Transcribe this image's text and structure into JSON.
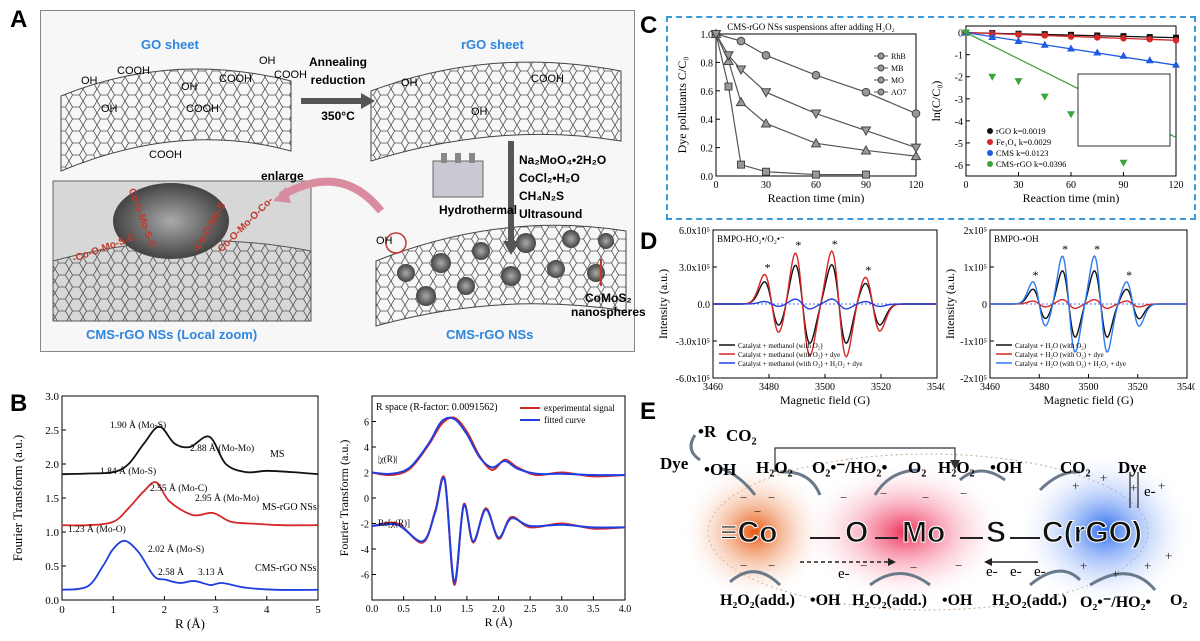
{
  "panels": {
    "A": {
      "label": "A",
      "go_sheet": "GO sheet",
      "rgo_sheet": "rGO sheet",
      "arrow1_text": [
        "Annealing",
        "reduction",
        "350°C"
      ],
      "arrow2_text": [
        "Na₂MoO₄•2H₂O",
        "CoCl₂•H₂O",
        "CH₄N₂S",
        "Ultrasound"
      ],
      "hydrothermal": "Hydrothermal",
      "enlarge": "enlarge",
      "comos2": "CoMoS₂",
      "nanospheres": "nanospheres",
      "local_zoom": "CMS-rGO NSs (Local zoom)",
      "cms_rgo": "CMS-rGO NSs",
      "chem_labels": [
        "OH",
        "COOH",
        "OH",
        "COOH",
        "OH",
        "COOH",
        "OH",
        "COOH",
        "COOH",
        "OH",
        "OH",
        "COOH",
        "OH"
      ],
      "local_bonds": [
        "-Co-O-Mo-S-C",
        "Co-O-Mo-S-C",
        "-Co-O-Mo-S",
        "Co-O-Mo-O-Co-"
      ]
    },
    "B": {
      "label": "B",
      "left": {
        "ylabel": "Fourier Transform (a.u.)",
        "xlabel": "R (Å)",
        "xticks": [
          "0",
          "1",
          "2",
          "3",
          "4",
          "5"
        ],
        "yticks": [
          "0.0",
          "0.5",
          "1.0",
          "1.5",
          "2.0",
          "2.5",
          "3.0"
        ],
        "series_labels": [
          "MS",
          "MS-rGO NSs",
          "CMS-rGO NSs"
        ],
        "annotations": [
          "1.90 Å (Mo-S)",
          "2.88 Å (Mo-Mo)",
          "1.84 Å (Mo-S)",
          "2.55 Å (Mo-C)",
          "2.95 Å (Mo-Mo)",
          "1.23 Å (Mo-O)",
          "2.02 Å (Mo-S)",
          "2.58 Å",
          "3.13 Å"
        ]
      },
      "right": {
        "title": "R space (R-factor: 0.0091562)",
        "ylabel": "Fourier Transform (a.u.)",
        "xlabel": "R (Å)",
        "xticks": [
          "0.0",
          "0.5",
          "1.0",
          "1.5",
          "2.0",
          "2.5",
          "3.0",
          "3.5",
          "4.0"
        ],
        "yticks": [
          "-6",
          "-4",
          "-2",
          "0",
          "2",
          "4",
          "6"
        ],
        "legend": [
          "experimental signal",
          "fitted curve"
        ],
        "curve_labels": [
          "|χ(R)|",
          "Re[χ(R)]"
        ]
      }
    },
    "C": {
      "label": "C",
      "left": {
        "title": "CMS-rGO NSs suspensions after adding H₂O₂",
        "ylabel": "Dye pollutants C/C₀",
        "xlabel": "Reaction time (min)",
        "xticks": [
          "0",
          "30",
          "60",
          "90",
          "120"
        ],
        "yticks": [
          "0.0",
          "0.2",
          "0.4",
          "0.6",
          "0.8",
          "1.0"
        ],
        "legend": [
          "RhB",
          "MB",
          "MO",
          "AO7"
        ]
      },
      "right": {
        "ylabel": "ln(C/C₀)",
        "xlabel": "Reaction time (min)",
        "xticks": [
          "0",
          "30",
          "60",
          "90",
          "120"
        ],
        "yticks": [
          "0",
          "-1",
          "-2",
          "-3",
          "-4",
          "-5",
          "-6"
        ],
        "legend": [
          "rGO  k=0.0019",
          "Fe₃O₄  k=0.0029",
          "CMS  k=0.0123",
          "CMS-rGO  k=0.0396"
        ]
      }
    },
    "D": {
      "label": "D",
      "left": {
        "title": "BMPO-HO₂•/O₂•⁻",
        "ylabel": "Intensity (a.u.)",
        "xlabel": "Magnetic field (G)",
        "xticks": [
          "3460",
          "3480",
          "3500",
          "3520",
          "3540"
        ],
        "yticks": [
          "6.0x10⁵",
          "3.0x10⁵",
          "0.0",
          "-3.0x10⁵",
          "-6.0x10⁵"
        ],
        "legend": [
          "Catalyst + methanol (with O₂)",
          "Catalyst + methanol (with O₂) + dye",
          "Catalyst + methanol (with O₂) + H₂O₂ + dye"
        ]
      },
      "right": {
        "title": "BMPO-•OH",
        "ylabel": "Intensity (a.u.)",
        "xlabel": "Magnetic field (G)",
        "xticks": [
          "3460",
          "3480",
          "3500",
          "3520",
          "3540"
        ],
        "yticks": [
          "2x10⁵",
          "1x10⁵",
          "0",
          "-1x10⁵",
          "-2x10⁵"
        ],
        "legend": [
          "Catalyst + H₂O (with O₂)",
          "Catalyst + H₂O (with O₂) + dye",
          "Catalyst + H₂O (with O₂) + H₂O₂ + dye"
        ]
      }
    },
    "E": {
      "label": "E",
      "top_labels": [
        "•R",
        "CO₂",
        "Dye",
        "•OH",
        "H₂O₂",
        "O₂•⁻/HO₂•",
        "O₂",
        "H₂O₂",
        "•OH",
        "CO₂",
        "Dye",
        "e-"
      ],
      "blobs": [
        "≡Co",
        "O",
        "Mo",
        "S",
        "C(rGO)"
      ],
      "bottom_labels": [
        "H₂O₂(add.)",
        "•OH",
        "H₂O₂(add.)",
        "•OH",
        "H₂O₂(add.)",
        "O₂•⁻/HO₂•",
        "O₂"
      ],
      "electrons": [
        "e-",
        "e-",
        "e-",
        "e-"
      ]
    }
  },
  "chart_data": [
    {
      "panel": "B-left",
      "type": "line",
      "xlabel": "R (Å)",
      "ylabel": "Fourier Transform (a.u.)",
      "xlim": [
        0,
        5
      ],
      "ylim": [
        0,
        3.0
      ],
      "series": [
        {
          "name": "MS",
          "x": [
            0,
            0.5,
            1.0,
            1.3,
            1.6,
            1.9,
            2.2,
            2.5,
            2.88,
            3.2,
            3.6,
            4.0,
            4.5,
            5.0
          ],
          "y": [
            1.85,
            1.86,
            1.88,
            2.0,
            2.3,
            2.55,
            2.3,
            2.25,
            2.4,
            2.0,
            1.88,
            1.9,
            1.88,
            1.85
          ]
        },
        {
          "name": "MS-rGO NSs",
          "x": [
            0,
            0.5,
            1.0,
            1.3,
            1.6,
            1.84,
            2.1,
            2.55,
            2.95,
            3.3,
            3.8,
            4.3,
            5.0
          ],
          "y": [
            1.1,
            1.1,
            1.15,
            1.35,
            1.6,
            1.73,
            1.45,
            1.25,
            1.28,
            1.15,
            1.12,
            1.1,
            1.1
          ]
        },
        {
          "name": "CMS-rGO NSs",
          "x": [
            0,
            0.5,
            0.8,
            1.0,
            1.23,
            1.5,
            1.8,
            2.02,
            2.3,
            2.58,
            2.9,
            3.13,
            3.6,
            4.2,
            5.0
          ],
          "y": [
            0.15,
            0.2,
            0.5,
            0.75,
            0.87,
            0.7,
            0.35,
            0.3,
            0.25,
            0.28,
            0.22,
            0.25,
            0.18,
            0.15,
            0.15
          ]
        }
      ]
    },
    {
      "panel": "B-right",
      "type": "line",
      "title": "R space (R-factor: 0.0091562)",
      "xlabel": "R (Å)",
      "ylabel": "Fourier Transform (a.u.)",
      "xlim": [
        0,
        4.0
      ],
      "ylim": [
        -8,
        8
      ],
      "series": [
        {
          "name": "experimental signal",
          "x": [
            0,
            0.3,
            0.6,
            0.9,
            1.1,
            1.3,
            1.5,
            1.7,
            1.9,
            2.1,
            2.3,
            2.6,
            3.0,
            3.5,
            4.0
          ],
          "y": [
            2,
            1.8,
            2.3,
            4.2,
            5.8,
            6.3,
            5.2,
            3.3,
            2.2,
            3.0,
            2.4,
            1.8,
            2.0,
            1.7,
            1.8
          ]
        },
        {
          "name": "fitted curve",
          "x": [
            0,
            0.3,
            0.6,
            0.9,
            1.1,
            1.3,
            1.5,
            1.7,
            1.9,
            2.1,
            2.3,
            2.6,
            3.0,
            3.5,
            4.0
          ],
          "y": [
            2,
            1.9,
            2.4,
            4.3,
            6.0,
            6.2,
            5.0,
            3.2,
            2.4,
            2.9,
            2.3,
            1.9,
            1.9,
            1.8,
            1.8
          ]
        },
        {
          "name": "Re[χ(R)] experimental",
          "x": [
            0,
            0.4,
            0.8,
            1.0,
            1.15,
            1.3,
            1.45,
            1.6,
            1.8,
            2.0,
            2.2,
            2.5,
            3.0,
            3.5,
            4.0
          ],
          "y": [
            -2.2,
            -2.0,
            -3.5,
            -1.0,
            1.5,
            -6.8,
            -0.5,
            -3.5,
            -0.8,
            -3.2,
            -1.5,
            -2.3,
            -2.0,
            -2.4,
            -2.3
          ]
        },
        {
          "name": "Re[χ(R)] fitted",
          "x": [
            0,
            0.4,
            0.8,
            1.0,
            1.15,
            1.3,
            1.45,
            1.6,
            1.8,
            2.0,
            2.2,
            2.5,
            3.0,
            3.5,
            4.0
          ],
          "y": [
            -2.2,
            -2.1,
            -3.4,
            -1.1,
            1.4,
            -6.6,
            -0.6,
            -3.4,
            -0.9,
            -3.1,
            -1.6,
            -2.2,
            -2.1,
            -2.3,
            -2.3
          ]
        }
      ]
    },
    {
      "panel": "C-left",
      "type": "line",
      "xlabel": "Reaction time (min)",
      "ylabel": "Dye pollutants C/C₀",
      "xlim": [
        0,
        120
      ],
      "ylim": [
        0,
        1.0
      ],
      "x": [
        0,
        7.5,
        15,
        30,
        60,
        90,
        120
      ],
      "series": [
        {
          "name": "RhB",
          "values": [
            1.0,
            0.63,
            0.08,
            0.03,
            0.01,
            0.01,
            null
          ]
        },
        {
          "name": "MB",
          "values": [
            1.0,
            null,
            0.95,
            0.85,
            0.71,
            0.59,
            0.44
          ]
        },
        {
          "name": "MO",
          "values": [
            1.0,
            0.81,
            0.52,
            0.37,
            0.23,
            0.18,
            0.14
          ]
        },
        {
          "name": "AO7",
          "values": [
            1.0,
            0.85,
            0.75,
            0.59,
            0.44,
            0.32,
            0.2
          ]
        }
      ]
    },
    {
      "panel": "C-right",
      "type": "scatter",
      "xlabel": "Reaction time (min)",
      "ylabel": "ln(C/C₀)",
      "xlim": [
        0,
        120
      ],
      "ylim": [
        -6.5,
        0.3
      ],
      "x": [
        0,
        15,
        30,
        45,
        60,
        75,
        90,
        105,
        120
      ],
      "series": [
        {
          "name": "rGO  k=0.0019",
          "values": [
            0,
            -0.02,
            -0.05,
            -0.07,
            -0.1,
            -0.13,
            -0.16,
            -0.2,
            -0.23
          ]
        },
        {
          "name": "Fe₃O₄  k=0.0029",
          "values": [
            0,
            -0.05,
            -0.09,
            -0.13,
            -0.18,
            -0.22,
            -0.26,
            -0.3,
            -0.35
          ]
        },
        {
          "name": "CMS  k=0.0123",
          "values": [
            0,
            -0.2,
            -0.38,
            -0.55,
            -0.72,
            -0.9,
            -1.05,
            -1.25,
            -1.45
          ]
        },
        {
          "name": "CMS-rGO  k=0.0396",
          "values": [
            0,
            -2.0,
            -2.2,
            -2.9,
            -3.7,
            -4.6,
            -5.9,
            null,
            null
          ]
        }
      ]
    },
    {
      "panel": "D-left",
      "type": "line",
      "xlabel": "Magnetic field (G)",
      "ylabel": "Intensity (a.u.)",
      "xlim": [
        3460,
        3540
      ],
      "ylim": [
        -600000,
        600000
      ],
      "peaks_x": [
        3481,
        3492,
        3505,
        3517
      ],
      "series": [
        {
          "name": "Catalyst + methanol (with O₂)",
          "amplitudes": [
            180000,
            320000,
            320000,
            170000
          ]
        },
        {
          "name": "Catalyst + methanol (with O₂) + dye",
          "amplitudes": [
            240000,
            420000,
            430000,
            220000
          ]
        },
        {
          "name": "Catalyst + methanol (with O₂) + H₂O₂ + dye",
          "amplitudes": [
            20000,
            40000,
            40000,
            20000
          ]
        }
      ]
    },
    {
      "panel": "D-right",
      "type": "line",
      "xlabel": "Magnetic field (G)",
      "ylabel": "Intensity (a.u.)",
      "xlim": [
        3460,
        3540
      ],
      "ylim": [
        -200000,
        200000
      ],
      "peaks_x": [
        3480,
        3492,
        3505,
        3518
      ],
      "series": [
        {
          "name": "Catalyst + H₂O (with O₂)",
          "amplitudes": [
            40000,
            90000,
            90000,
            40000
          ]
        },
        {
          "name": "Catalyst + H₂O (with O₂) + dye",
          "amplitudes": [
            8000,
            12000,
            12000,
            8000
          ]
        },
        {
          "name": "Catalyst + H₂O (with O₂) + H₂O₂ + dye",
          "amplitudes": [
            60000,
            130000,
            130000,
            60000
          ]
        }
      ]
    }
  ]
}
